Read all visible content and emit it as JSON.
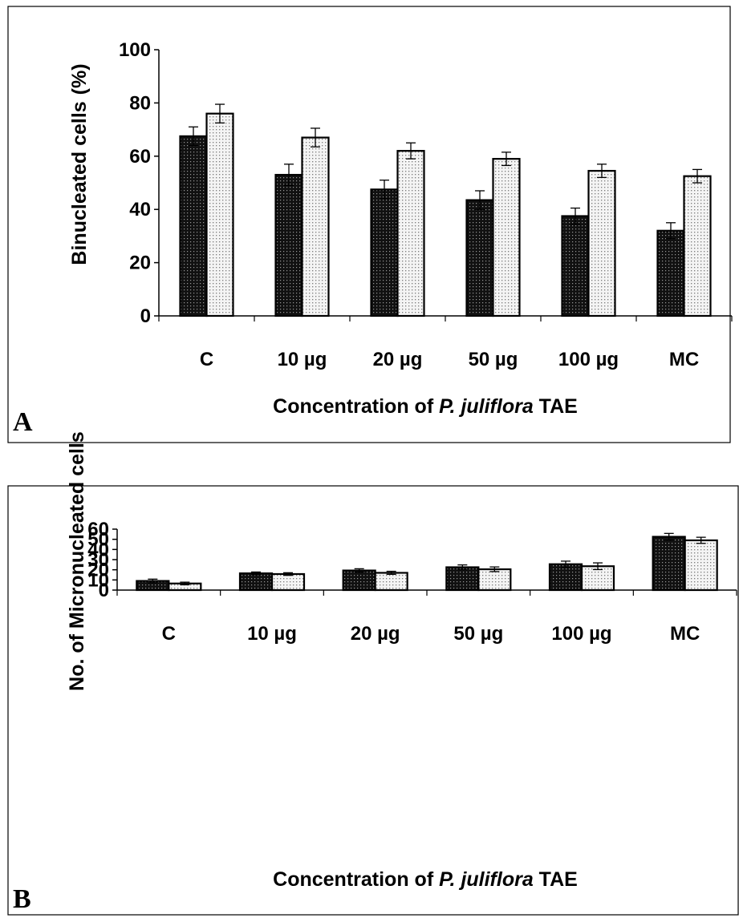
{
  "charts": [
    {
      "panel_label": "A",
      "ylabel": "Binucleated cells",
      "ylabel_unit": "(%)",
      "xlabel_pre": "Concentration of ",
      "xlabel_italic": "P. juliflora",
      "xlabel_post": " TAE"
    },
    {
      "panel_label": "B",
      "ylabel": "No. of Micronucleated cells",
      "xlabel_pre": "Concentration of ",
      "xlabel_italic": "P. juliflora",
      "xlabel_post": " TAE"
    }
  ],
  "chart_data": [
    {
      "type": "bar",
      "categories": [
        "C",
        "10 µg",
        "20 µg",
        "50 µg",
        "100 µg",
        "MC"
      ],
      "series": [
        {
          "values": [
            67.5,
            53,
            47.5,
            43.5,
            37.5,
            32
          ],
          "errors": [
            3.5,
            4,
            3.5,
            3.5,
            3,
            3
          ],
          "color": "#1a1a1a",
          "pattern": "dark-dotted"
        },
        {
          "values": [
            76,
            67,
            62,
            59,
            54.5,
            52.5
          ],
          "errors": [
            3.5,
            3.5,
            3,
            2.5,
            2.5,
            2.5
          ],
          "color": "#e6e6e6",
          "pattern": "light-dotted"
        }
      ],
      "ylim": [
        0,
        100
      ],
      "yticks": [
        0,
        20,
        40,
        60,
        80,
        100
      ],
      "grid": false
    },
    {
      "type": "bar",
      "categories": [
        "C",
        "10 µg",
        "20 µg",
        "50 µg",
        "100 µg",
        "MC"
      ],
      "series": [
        {
          "values": [
            9,
            16.5,
            19.3,
            22.5,
            25.5,
            52.5
          ],
          "errors": [
            1.8,
            1.3,
            1.7,
            2.3,
            3,
            3.3
          ],
          "color": "#1a1a1a",
          "pattern": "dark-dotted"
        },
        {
          "values": [
            6.5,
            15.8,
            17,
            20.5,
            23.5,
            49
          ],
          "errors": [
            1.3,
            1.3,
            1.5,
            2.3,
            3.3,
            3
          ],
          "color": "#e6e6e6",
          "pattern": "light-dotted"
        }
      ],
      "ylim": [
        0,
        60
      ],
      "yticks": [
        0,
        10,
        20,
        30,
        40,
        50,
        60
      ],
      "grid": false
    }
  ]
}
